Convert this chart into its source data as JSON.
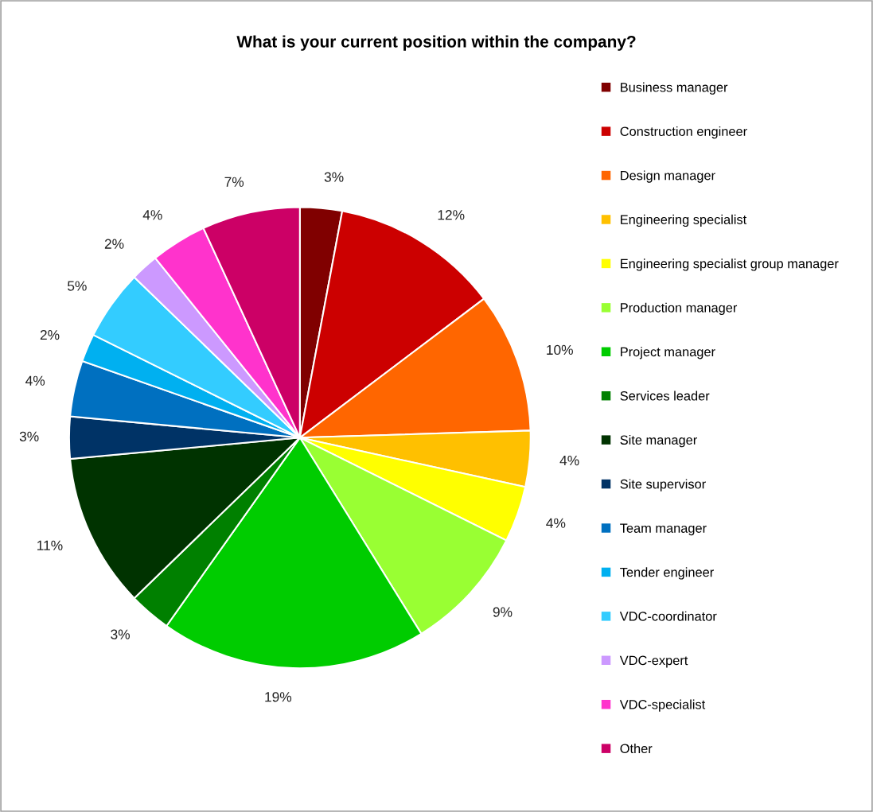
{
  "chart_data": {
    "type": "pie",
    "title": "What is your current position within the company?",
    "categories": [
      "Business manager",
      "Construction engineer",
      "Design manager",
      "Engineering specialist",
      "Engineering specialist group manager",
      "Production manager",
      "Project manager",
      "Services leader",
      "Site manager",
      "Site supervisor",
      "Team manager",
      "Tender engineer",
      "VDC-coordinator",
      "VDC-expert",
      "VDC-specialist",
      "Other"
    ],
    "values": [
      3,
      12,
      10,
      4,
      4,
      9,
      19,
      3,
      11,
      3,
      4,
      2,
      5,
      2,
      4,
      7
    ],
    "colors": [
      "#800000",
      "#cc0000",
      "#ff6600",
      "#ffc000",
      "#ffff00",
      "#99ff33",
      "#00cc00",
      "#008000",
      "#003300",
      "#003366",
      "#0070c0",
      "#00b0f0",
      "#33ccff",
      "#cc99ff",
      "#ff33cc",
      "#cc0066"
    ],
    "value_labels": [
      "3%",
      "12%",
      "10%",
      "4%",
      "4%",
      "9%",
      "19%",
      "3%",
      "11%",
      "3%",
      "4%",
      "2%",
      "5%",
      "2%",
      "4%",
      "7%"
    ],
    "legend": "right"
  }
}
